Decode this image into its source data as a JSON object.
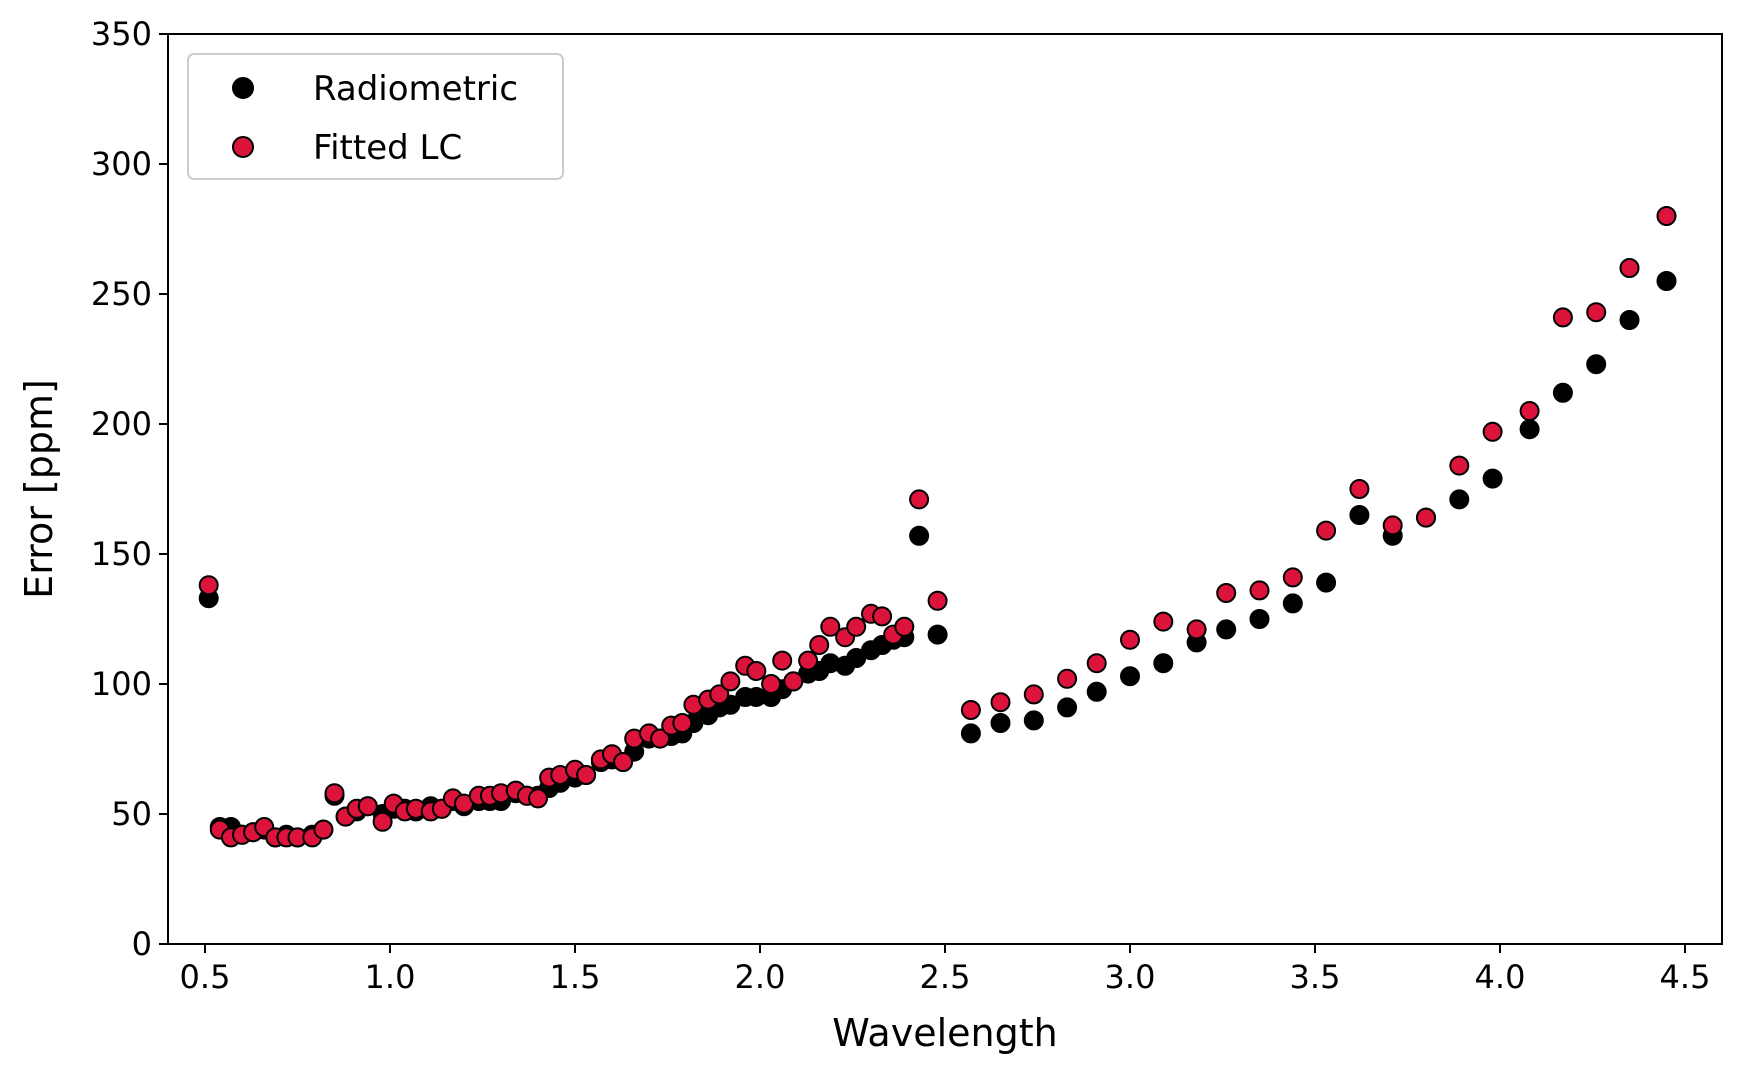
{
  "chart_data": {
    "type": "scatter",
    "title": "",
    "xlabel": "Wavelength",
    "ylabel": "Error [ppm]",
    "xlim": [
      0.4,
      4.6
    ],
    "ylim": [
      0,
      350
    ],
    "xticks": [
      0.5,
      1.0,
      1.5,
      2.0,
      2.5,
      3.0,
      3.5,
      4.0,
      4.5
    ],
    "xtick_labels": [
      "0.5",
      "1.0",
      "1.5",
      "2.0",
      "2.5",
      "3.0",
      "3.5",
      "4.0",
      "4.5"
    ],
    "yticks": [
      0,
      50,
      100,
      150,
      200,
      250,
      300,
      350
    ],
    "ytick_labels": [
      "0",
      "50",
      "100",
      "150",
      "200",
      "250",
      "300",
      "350"
    ],
    "grid": false,
    "legend_position": "top-left",
    "series": [
      {
        "name": "Radiometric",
        "color": "#000000",
        "edgecolor": "#000000",
        "x": [
          0.51,
          0.54,
          0.57,
          0.6,
          0.63,
          0.66,
          0.69,
          0.72,
          0.75,
          0.79,
          0.82,
          0.85,
          0.88,
          0.91,
          0.94,
          0.98,
          1.01,
          1.04,
          1.07,
          1.11,
          1.14,
          1.17,
          1.2,
          1.24,
          1.27,
          1.3,
          1.34,
          1.37,
          1.4,
          1.43,
          1.46,
          1.5,
          1.53,
          1.57,
          1.6,
          1.63,
          1.66,
          1.7,
          1.73,
          1.76,
          1.79,
          1.82,
          1.86,
          1.89,
          1.92,
          1.96,
          1.99,
          2.03,
          2.06,
          2.09,
          2.13,
          2.16,
          2.19,
          2.23,
          2.26,
          2.3,
          2.33,
          2.36,
          2.39,
          2.43,
          2.48,
          2.57,
          2.65,
          2.74,
          2.83,
          2.91,
          3.0,
          3.09,
          3.18,
          3.26,
          3.35,
          3.44,
          3.53,
          3.62,
          3.71,
          3.8,
          3.89,
          3.98,
          4.08,
          4.17,
          4.26,
          4.35,
          4.45
        ],
        "y": [
          133,
          45,
          45,
          42,
          43,
          44,
          41,
          42,
          41,
          42,
          44,
          57,
          49,
          51,
          53,
          50,
          52,
          52,
          51,
          53,
          52,
          55,
          53,
          55,
          55,
          55,
          58,
          57,
          57,
          60,
          62,
          64,
          65,
          70,
          71,
          70,
          74,
          79,
          79,
          80,
          81,
          85,
          88,
          91,
          92,
          95,
          95,
          95,
          98,
          101,
          104,
          105,
          108,
          107,
          110,
          113,
          115,
          117,
          118,
          157,
          119,
          81,
          85,
          86,
          91,
          97,
          103,
          108,
          116,
          121,
          125,
          131,
          139,
          165,
          157,
          164,
          171,
          179,
          198,
          212,
          223,
          240,
          255
        ]
      },
      {
        "name": "Fitted LC",
        "color": "#dc143c",
        "edgecolor": "#000000",
        "x": [
          0.51,
          0.54,
          0.57,
          0.6,
          0.63,
          0.66,
          0.69,
          0.72,
          0.75,
          0.79,
          0.82,
          0.85,
          0.88,
          0.91,
          0.94,
          0.98,
          1.01,
          1.04,
          1.07,
          1.11,
          1.14,
          1.17,
          1.2,
          1.24,
          1.27,
          1.3,
          1.34,
          1.37,
          1.4,
          1.43,
          1.46,
          1.5,
          1.53,
          1.57,
          1.6,
          1.63,
          1.66,
          1.7,
          1.73,
          1.76,
          1.79,
          1.82,
          1.86,
          1.89,
          1.92,
          1.96,
          1.99,
          2.03,
          2.06,
          2.09,
          2.13,
          2.16,
          2.19,
          2.23,
          2.26,
          2.3,
          2.33,
          2.36,
          2.39,
          2.43,
          2.48,
          2.57,
          2.65,
          2.74,
          2.83,
          2.91,
          3.0,
          3.09,
          3.18,
          3.26,
          3.35,
          3.44,
          3.53,
          3.62,
          3.71,
          3.8,
          3.89,
          3.98,
          4.08,
          4.17,
          4.26,
          4.35,
          4.45
        ],
        "y": [
          138,
          44,
          41,
          42,
          43,
          45,
          41,
          41,
          41,
          41,
          44,
          58,
          49,
          52,
          53,
          47,
          54,
          51,
          52,
          51,
          52,
          56,
          54,
          57,
          57,
          58,
          59,
          57,
          56,
          64,
          65,
          67,
          65,
          71,
          73,
          70,
          79,
          81,
          79,
          84,
          85,
          92,
          94,
          96,
          101,
          107,
          105,
          100,
          109,
          101,
          109,
          115,
          122,
          118,
          122,
          127,
          126,
          119,
          122,
          171,
          132,
          90,
          93,
          96,
          102,
          108,
          117,
          124,
          121,
          135,
          136,
          141,
          159,
          175,
          161,
          164,
          184,
          197,
          205,
          241,
          243,
          260,
          280
        ]
      }
    ]
  }
}
